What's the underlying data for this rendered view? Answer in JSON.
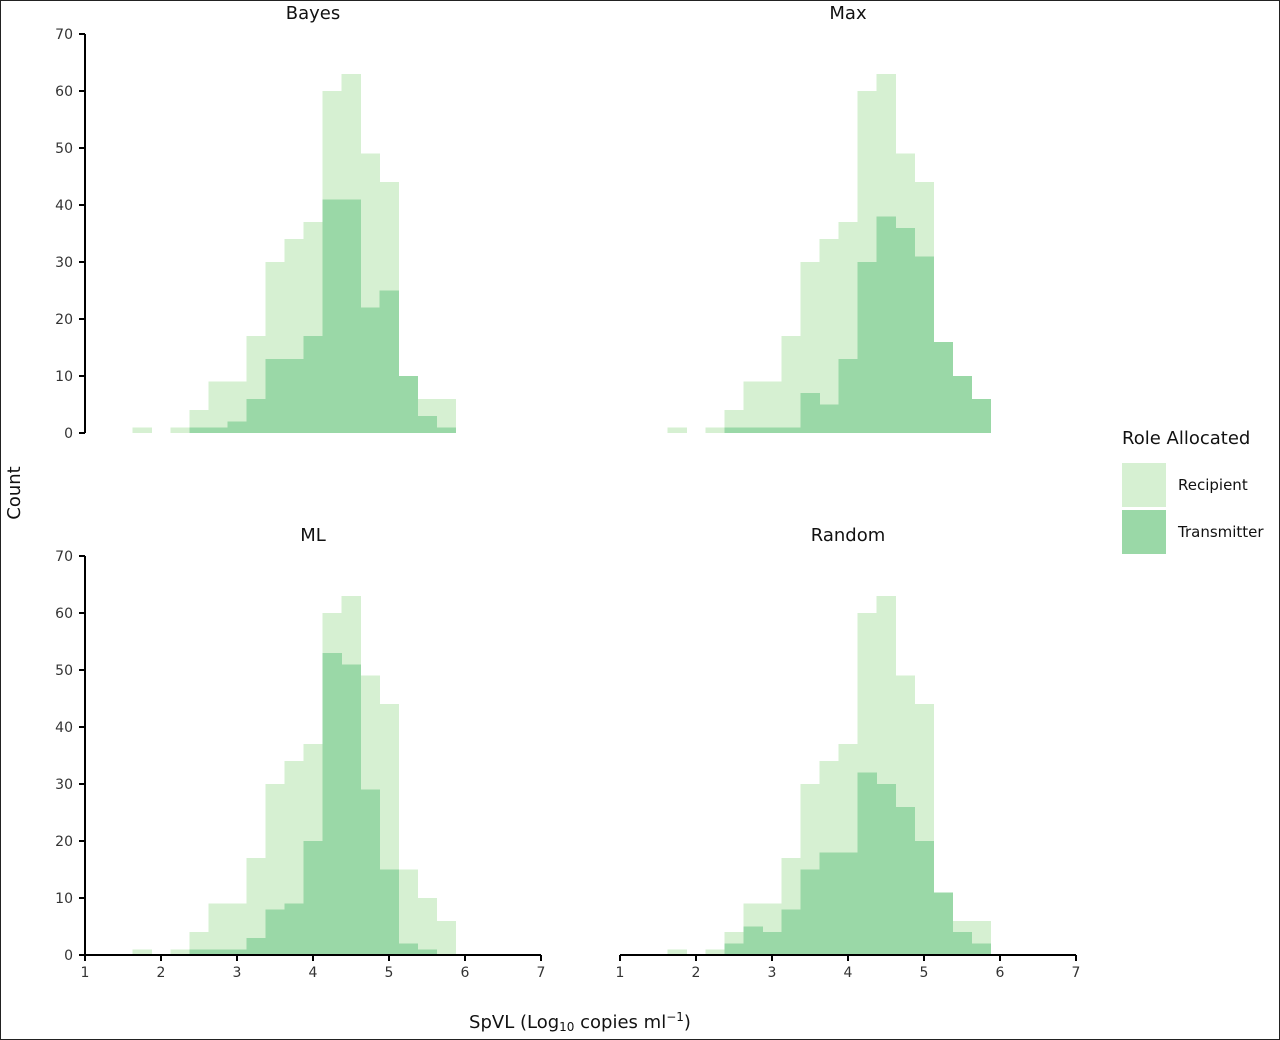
{
  "chart_data": {
    "type": "bar",
    "subtype": "overlaid-histogram",
    "xlabel": {
      "pre": "SpVL (Log",
      "sub": "10",
      "mid": " copies ml",
      "sup": "−1",
      "post": ")"
    },
    "ylabel": "Count",
    "xlim": [
      1,
      7
    ],
    "ylim": [
      0,
      70
    ],
    "x_ticks": [
      1,
      2,
      3,
      4,
      5,
      6,
      7
    ],
    "y_ticks": [
      0,
      10,
      20,
      30,
      40,
      50,
      60,
      70
    ],
    "bin_width": 0.25,
    "bin_starts": [
      1.625,
      1.875,
      2.125,
      2.375,
      2.625,
      2.875,
      3.125,
      3.375,
      3.625,
      3.875,
      4.125,
      4.375,
      4.625,
      4.875,
      5.125,
      5.375,
      5.625
    ],
    "grid": false,
    "legend": {
      "title": "Role Allocated",
      "position": "right",
      "entries": [
        {
          "label": "Recipient",
          "color": "#d6f0d2"
        },
        {
          "label": "Transmitter",
          "color": "#9ad8a7"
        }
      ]
    },
    "panels": [
      {
        "title": "Bayes",
        "series": [
          {
            "name": "Recipient",
            "values": [
              1,
              0,
              1,
              4,
              9,
              9,
              17,
              30,
              34,
              37,
              60,
              63,
              49,
              44,
              10,
              6,
              6
            ]
          },
          {
            "name": "Transmitter",
            "values": [
              0,
              0,
              0,
              1,
              1,
              2,
              6,
              13,
              13,
              17,
              41,
              41,
              22,
              25,
              10,
              3,
              1
            ]
          }
        ]
      },
      {
        "title": "Max",
        "series": [
          {
            "name": "Recipient",
            "values": [
              1,
              0,
              1,
              4,
              9,
              9,
              17,
              30,
              34,
              37,
              60,
              63,
              49,
              44,
              13,
              10,
              6
            ]
          },
          {
            "name": "Transmitter",
            "values": [
              0,
              0,
              0,
              1,
              1,
              1,
              1,
              7,
              5,
              13,
              30,
              38,
              36,
              31,
              16,
              10,
              6
            ]
          }
        ]
      },
      {
        "title": "ML",
        "series": [
          {
            "name": "Recipient",
            "values": [
              1,
              0,
              1,
              4,
              9,
              9,
              17,
              30,
              34,
              37,
              60,
              63,
              49,
              44,
              15,
              10,
              6
            ]
          },
          {
            "name": "Transmitter",
            "values": [
              0,
              0,
              0,
              1,
              1,
              1,
              3,
              8,
              9,
              20,
              53,
              51,
              29,
              15,
              2,
              1,
              0
            ]
          }
        ]
      },
      {
        "title": "Random",
        "series": [
          {
            "name": "Recipient",
            "values": [
              1,
              0,
              1,
              4,
              9,
              9,
              17,
              30,
              34,
              37,
              60,
              63,
              49,
              44,
              10,
              6,
              6
            ]
          },
          {
            "name": "Transmitter",
            "values": [
              0,
              0,
              0,
              2,
              5,
              4,
              8,
              15,
              18,
              18,
              32,
              30,
              26,
              20,
              11,
              4,
              2
            ]
          }
        ]
      }
    ]
  }
}
